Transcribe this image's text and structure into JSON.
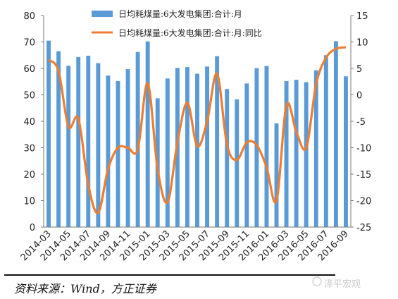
{
  "chart_data": {
    "type": "bar+line",
    "title": "",
    "x": [
      "2014-03",
      "2014-04",
      "2014-05",
      "2014-06",
      "2014-07",
      "2014-08",
      "2014-09",
      "2014-10",
      "2014-11",
      "2014-12",
      "2015-01",
      "2015-02",
      "2015-03",
      "2015-04",
      "2015-05",
      "2015-06",
      "2015-07",
      "2015-08",
      "2015-09",
      "2015-10",
      "2015-11",
      "2015-12",
      "2016-01",
      "2016-02",
      "2016-03",
      "2016-04",
      "2016-05",
      "2016-06",
      "2016-07",
      "2016-08",
      "2016-09"
    ],
    "tick_labels": [
      "2014-03",
      "2014-05",
      "2014-07",
      "2014-09",
      "2014-11",
      "2015-01",
      "2015-03",
      "2015-05",
      "2015-07",
      "2015-09",
      "2015-11",
      "2016-01",
      "2016-03",
      "2016-05",
      "2016-07",
      "2016-09"
    ],
    "series": [
      {
        "name": "日均耗煤量:6大发电集团:合计:月",
        "type": "bar",
        "axis": "left",
        "color": "#5b9bd5",
        "values": [
          70.5,
          66.5,
          61,
          64.3,
          64.8,
          62,
          57.3,
          55.2,
          59.7,
          66.2,
          70.2,
          48.7,
          56.2,
          60.2,
          60.5,
          58,
          60.7,
          64.6,
          52.2,
          48.3,
          54.3,
          60.1,
          60.9,
          39.2,
          55.2,
          55.7,
          54.8,
          59.3,
          65,
          70.3,
          57
        ]
      },
      {
        "name": "日均耗煤量:6大发电集团:合计:月:同比",
        "type": "line",
        "axis": "right",
        "color": "#ed7d31",
        "values": [
          6.6,
          4.5,
          -6,
          -4.5,
          -17,
          -22.3,
          -14,
          -10,
          -10,
          -10.3,
          2.2,
          -14,
          -20.3,
          -9,
          -1.5,
          -9.7,
          -5,
          4,
          -9.4,
          -12.3,
          -9,
          -9.5,
          -13.7,
          -20,
          -2,
          -7,
          -10,
          2,
          7,
          8.7,
          9
        ]
      }
    ],
    "y_left": {
      "min": 0,
      "max": 80,
      "ticks": [
        0,
        10,
        20,
        30,
        40,
        50,
        60,
        70,
        80
      ]
    },
    "y_right": {
      "min": -25,
      "max": 15,
      "ticks": [
        -25,
        -20,
        -15,
        -10,
        -5,
        0,
        5,
        10,
        15
      ]
    },
    "legend_position": "top",
    "grid": false
  },
  "source_text": "资料来源：Wind，方正证券",
  "watermark_text": "泽平宏观"
}
